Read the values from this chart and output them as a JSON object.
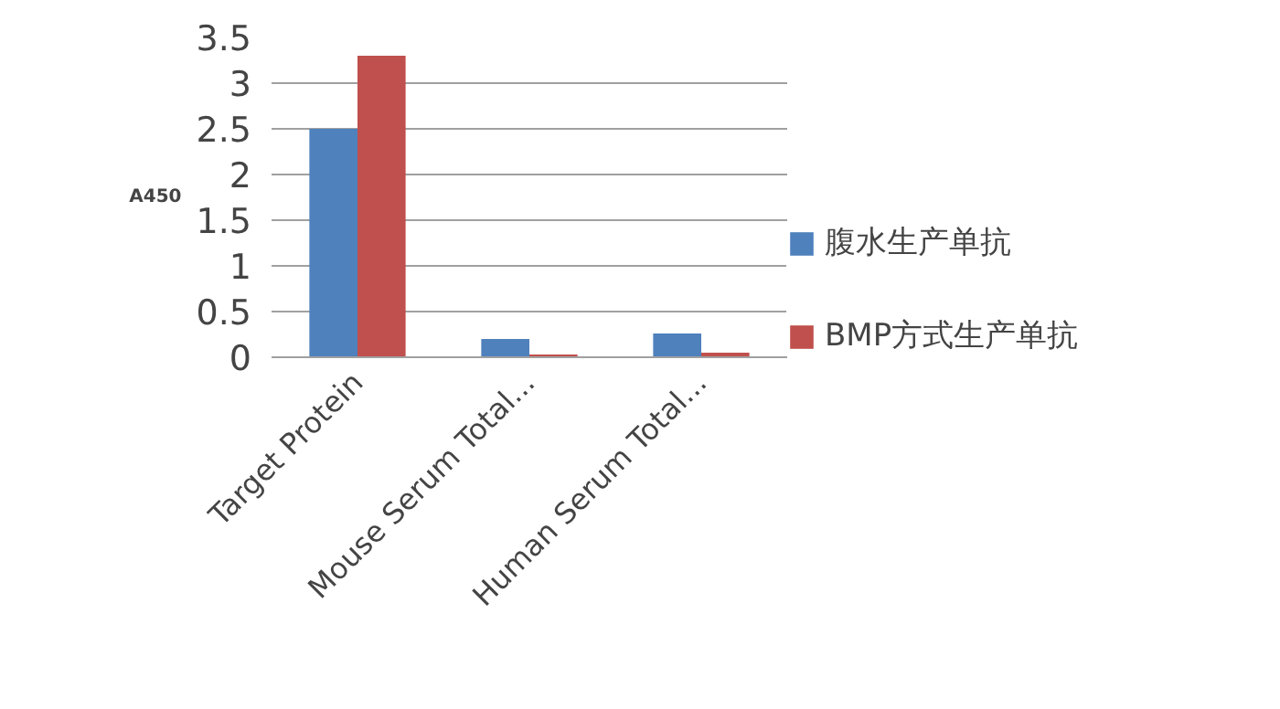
{
  "chart_data": {
    "type": "bar",
    "ylabel": "A450",
    "categories": [
      "Target Protein",
      "Mouse Serum Total...",
      "Human Serum Total..."
    ],
    "series": [
      {
        "name": "腹水生产单抗",
        "color": "#4f81bd",
        "values": [
          2.5,
          0.2,
          0.26
        ]
      },
      {
        "name": "BMP方式生产单抗",
        "color": "#c0504d",
        "values": [
          3.3,
          0.03,
          0.05
        ]
      }
    ],
    "ylim": [
      0,
      3.5
    ],
    "yticks": [
      0,
      0.5,
      1,
      1.5,
      2,
      2.5,
      3,
      3.5
    ],
    "grid": "y",
    "legend": "right"
  }
}
